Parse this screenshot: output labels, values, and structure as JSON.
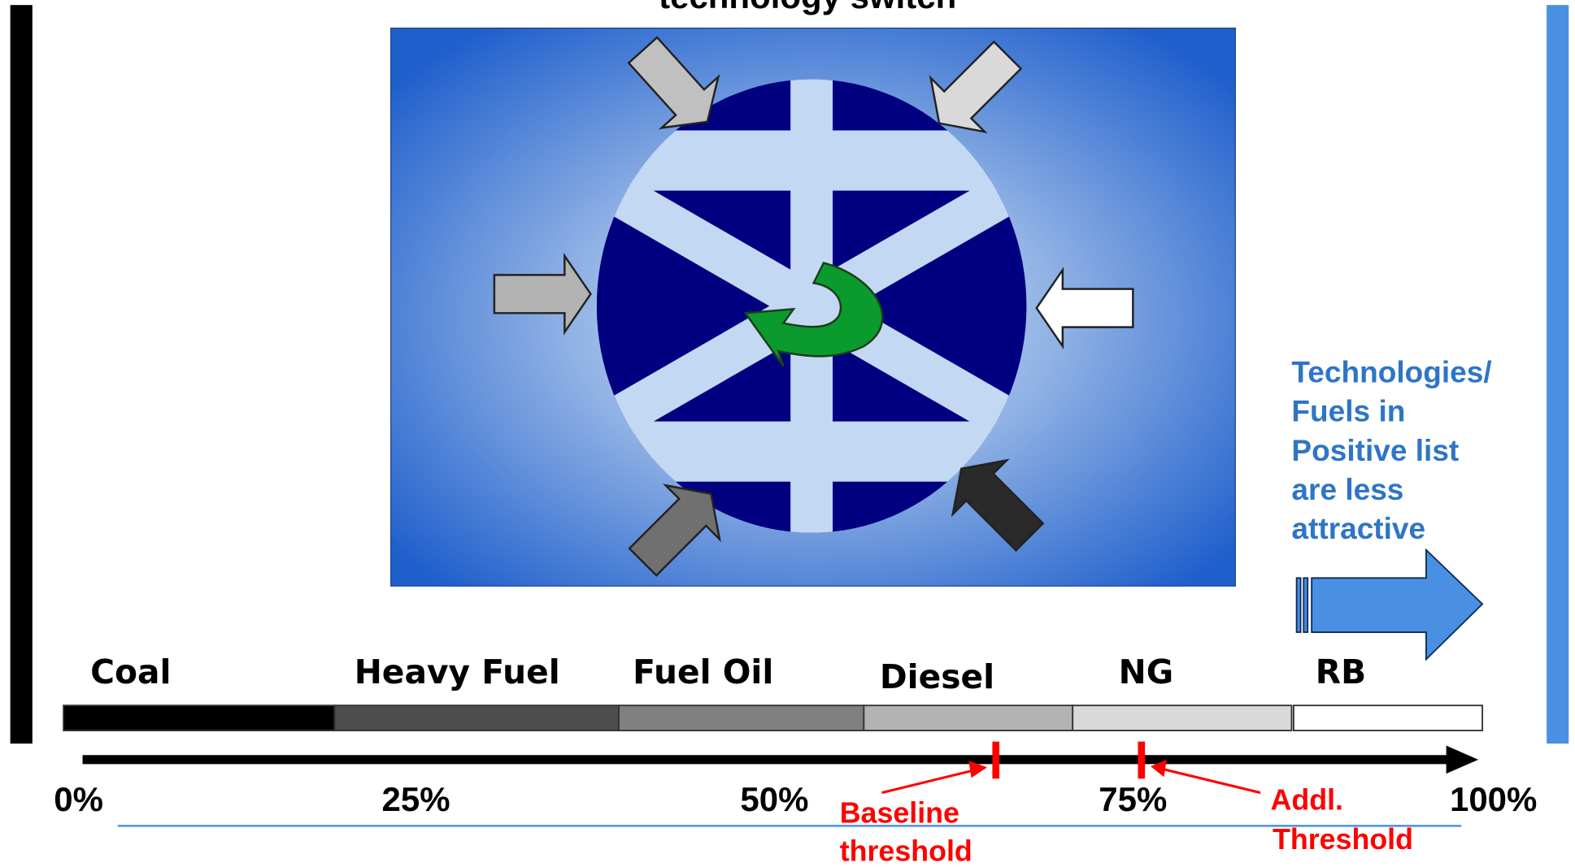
{
  "title": "technology switch",
  "fuels": [
    "Coal",
    "Heavy Fuel",
    "Fuel Oil",
    "Diesel",
    "NG",
    "RB"
  ],
  "scale": [
    "0%",
    "25%",
    "50%",
    "75%",
    "100%"
  ],
  "thresholds": [
    {
      "lines": [
        "Baseline",
        "threshold"
      ]
    },
    {
      "lines": [
        "Addl.",
        "Threshold"
      ]
    }
  ],
  "note": {
    "lines": [
      "Technologies/",
      "Fuels in",
      "Positive list",
      "are less",
      "attractive"
    ]
  }
}
